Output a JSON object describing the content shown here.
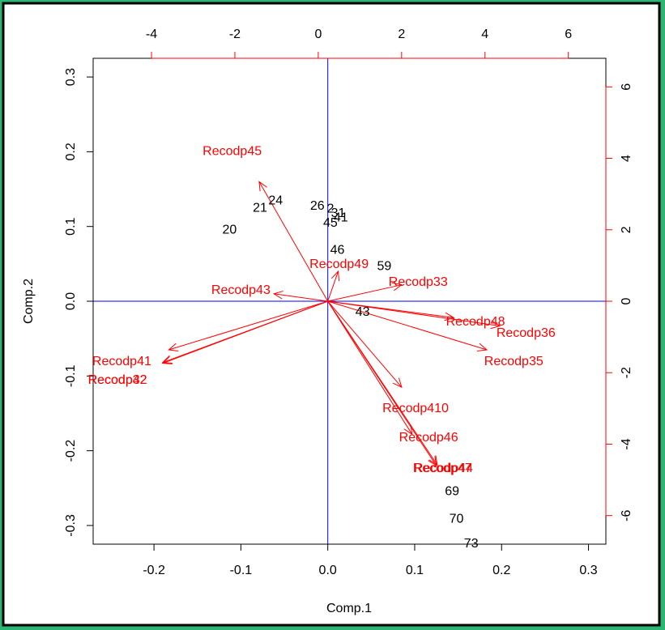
{
  "chart_data": {
    "type": "scatter",
    "subtype": "biplot",
    "title": "",
    "xlabel": "Comp.1",
    "ylabel": "Comp.2",
    "xlim": [
      -0.27,
      0.32
    ],
    "ylim": [
      -0.325,
      0.325
    ],
    "x_ticks": [
      -0.2,
      -0.1,
      0.0,
      0.1,
      0.2,
      0.3
    ],
    "x_tick_labels": [
      "-0.2",
      "-0.1",
      "0.0",
      "0.1",
      "0.2",
      "0.3"
    ],
    "y_ticks": [
      -0.3,
      -0.2,
      -0.1,
      0.0,
      0.1,
      0.2,
      0.3
    ],
    "y_tick_labels": [
      "-0.3",
      "-0.2",
      "-0.1",
      "0.0",
      "0.1",
      "0.2",
      "0.3"
    ],
    "top_axis": {
      "ticks": [
        -4,
        -2,
        0,
        2,
        4,
        6
      ],
      "tick_labels": [
        "-4",
        "-2",
        "0",
        "2",
        "4",
        "6"
      ],
      "lim": [
        -5.4,
        6.9
      ]
    },
    "right_axis": {
      "ticks": [
        -6,
        -4,
        -2,
        0,
        2,
        4,
        6
      ],
      "tick_labels": [
        "-6",
        "-4",
        "-2",
        "0",
        "2",
        "4",
        "6"
      ],
      "lim": [
        -6.8,
        6.8
      ]
    },
    "colors": {
      "points": "#000000",
      "loadings": "#ff0000",
      "reference_lines": "#0000ff",
      "frame": "#000000",
      "page": "#ffffff",
      "border_accent": "#2bb673"
    },
    "points": [
      {
        "label": "20",
        "x": -0.113,
        "y": 0.097
      },
      {
        "label": "21",
        "x": -0.078,
        "y": 0.126
      },
      {
        "label": "24",
        "x": -0.06,
        "y": 0.136
      },
      {
        "label": "26",
        "x": -0.012,
        "y": 0.129
      },
      {
        "label": "2",
        "x": 0.003,
        "y": 0.125
      },
      {
        "label": "31",
        "x": 0.012,
        "y": 0.119
      },
      {
        "label": "41",
        "x": 0.015,
        "y": 0.113
      },
      {
        "label": "45",
        "x": 0.003,
        "y": 0.106
      },
      {
        "label": "46",
        "x": 0.011,
        "y": 0.07
      },
      {
        "label": "59",
        "x": 0.065,
        "y": 0.048
      },
      {
        "label": "43",
        "x": 0.04,
        "y": -0.013
      },
      {
        "label": "69",
        "x": 0.143,
        "y": -0.253
      },
      {
        "label": "70",
        "x": 0.148,
        "y": -0.29
      },
      {
        "label": "73",
        "x": 0.165,
        "y": -0.323
      }
    ],
    "loadings": [
      {
        "label": "Recodp45",
        "x": -0.079,
        "y": 0.16,
        "label_x": -0.11,
        "label_y": 0.202
      },
      {
        "label": "Recodp43",
        "x": -0.062,
        "y": 0.01,
        "label_x": -0.1,
        "label_y": 0.016
      },
      {
        "label": "Recodp49",
        "x": 0.012,
        "y": 0.04,
        "label_x": 0.013,
        "label_y": 0.051
      },
      {
        "label": "Recodp33",
        "x": 0.085,
        "y": 0.022,
        "label_x": 0.104,
        "label_y": 0.027
      },
      {
        "label": "Recodp48",
        "x": 0.145,
        "y": -0.022,
        "label_x": 0.17,
        "label_y": -0.026
      },
      {
        "label": "Recodp36",
        "x": 0.198,
        "y": -0.033,
        "label_x": 0.228,
        "label_y": -0.041
      },
      {
        "label": "Recodp35",
        "x": 0.183,
        "y": -0.065,
        "label_x": 0.214,
        "label_y": -0.079
      },
      {
        "label": "Recodp41",
        "x": -0.183,
        "y": -0.065,
        "label_x": -0.237,
        "label_y": -0.079
      },
      {
        "label": "Recodp42",
        "x": -0.19,
        "y": -0.083,
        "label_x": -0.242,
        "label_y": -0.104
      },
      {
        "label": "Recodp32",
        "x": -0.19,
        "y": -0.082,
        "label_x": -0.242,
        "label_y": -0.104
      },
      {
        "label": "Recodp410",
        "x": 0.085,
        "y": -0.115,
        "label_x": 0.101,
        "label_y": -0.142
      },
      {
        "label": "Recodp46",
        "x": 0.097,
        "y": -0.178,
        "label_x": 0.116,
        "label_y": -0.181
      },
      {
        "label": "Recodp47",
        "x": 0.125,
        "y": -0.22,
        "label_x": 0.132,
        "label_y": -0.222
      },
      {
        "label": "Recodp44",
        "x": 0.126,
        "y": -0.219,
        "label_x": 0.133,
        "label_y": -0.222
      }
    ]
  }
}
